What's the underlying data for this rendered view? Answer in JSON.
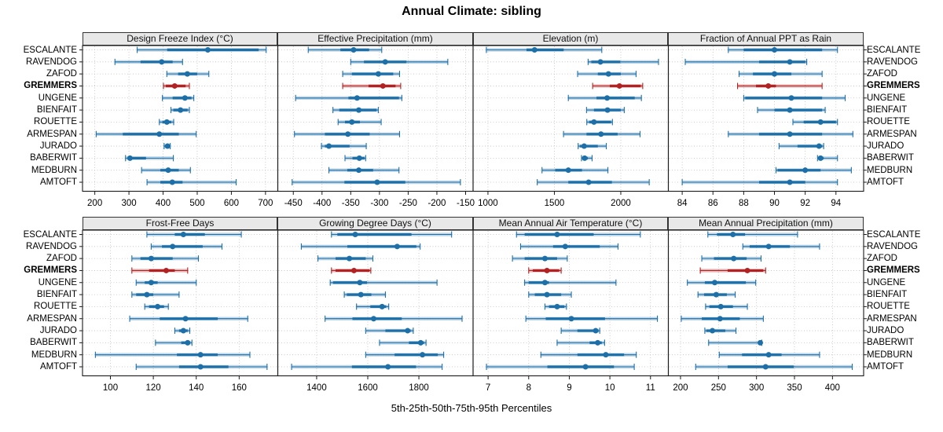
{
  "title": "Annual Climate: sibling",
  "caption": "5th-25th-50th-75th-95th Percentiles",
  "highlight_site": "GREMMERS",
  "colors": {
    "series": "#1d6fa8",
    "highlight": "#b22222",
    "strip_bg": "#e8e8e8",
    "grid": "#bfbfbf",
    "panel_border": "#1a1a1a"
  },
  "chart_data": {
    "type": "scatter",
    "variant": "percentile-dotplot-trellis",
    "percentiles": [
      5,
      25,
      50,
      75,
      95
    ],
    "sites": [
      "ESCALANTE",
      "RAVENDOG",
      "ZAFOD",
      "GREMMERS",
      "UNGENE",
      "BIENFAIT",
      "ROUETTE",
      "ARMESPAN",
      "JURADO",
      "BABERWIT",
      "MEDBURN",
      "AMTOFT"
    ],
    "panels": [
      {
        "title": "Design Freeze Index (°C)",
        "row": 0,
        "col": 0,
        "domain": [
          164,
          736
        ],
        "ticks": [
          200,
          300,
          400,
          500,
          600,
          700
        ],
        "values": [
          [
            324,
            412,
            531,
            680,
            702
          ],
          [
            259,
            334,
            396,
            428,
            457
          ],
          [
            411,
            444,
            471,
            500,
            534
          ],
          [
            401,
            408,
            434,
            466,
            477
          ],
          [
            398,
            428,
            464,
            483,
            490
          ],
          [
            423,
            430,
            451,
            472,
            477
          ],
          [
            389,
            398,
            411,
            424,
            431
          ],
          [
            204,
            282,
            389,
            446,
            497
          ],
          [
            403,
            408,
            413,
            418,
            421
          ],
          [
            290,
            296,
            303,
            350,
            430
          ],
          [
            337,
            392,
            415,
            446,
            480
          ],
          [
            353,
            392,
            427,
            457,
            614
          ]
        ]
      },
      {
        "title": "Effective Precipitation (mm)",
        "row": 0,
        "col": 1,
        "domain": [
          -477,
          -137
        ],
        "ticks": [
          -450,
          -400,
          -350,
          -300,
          -250,
          -200,
          -150
        ],
        "values": [
          [
            -424,
            -368,
            -345,
            -318,
            -296
          ],
          [
            -350,
            -327,
            -290,
            -253,
            -181
          ],
          [
            -364,
            -348,
            -302,
            -276,
            -265
          ],
          [
            -364,
            -319,
            -294,
            -272,
            -263
          ],
          [
            -446,
            -354,
            -339,
            -266,
            -261
          ],
          [
            -381,
            -370,
            -336,
            -305,
            -302
          ],
          [
            -372,
            -360,
            -348,
            -334,
            -297
          ],
          [
            -448,
            -395,
            -355,
            -317,
            -265
          ],
          [
            -401,
            -395,
            -388,
            -352,
            -323
          ],
          [
            -360,
            -347,
            -335,
            -326,
            -324
          ],
          [
            -388,
            -356,
            -336,
            -311,
            -266
          ],
          [
            -452,
            -361,
            -304,
            -255,
            -159
          ]
        ]
      },
      {
        "title": "Elevation (m)",
        "row": 0,
        "col": 2,
        "domain": [
          888,
          2358
        ],
        "ticks": [
          1000,
          1500,
          2000
        ],
        "values": [
          [
            988,
            1290,
            1351,
            1570,
            1857
          ],
          [
            1754,
            1778,
            1847,
            1996,
            2284
          ],
          [
            1675,
            1827,
            1907,
            2000,
            2115
          ],
          [
            1788,
            1917,
            1990,
            2150,
            2165
          ],
          [
            1605,
            1817,
            1897,
            2105,
            2155
          ],
          [
            1742,
            1798,
            1900,
            2000,
            2026
          ],
          [
            1744,
            1762,
            1798,
            1927,
            1937
          ],
          [
            1569,
            1742,
            1851,
            1976,
            2145
          ],
          [
            1679,
            1692,
            1724,
            1827,
            1891
          ],
          [
            1704,
            1712,
            1728,
            1752,
            1784
          ],
          [
            1407,
            1506,
            1605,
            1708,
            1903
          ],
          [
            1371,
            1605,
            1758,
            1933,
            2214
          ]
        ]
      },
      {
        "title": "Fraction of Annual PPT as Rain",
        "row": 0,
        "col": 3,
        "domain": [
          83.1,
          95.8
        ],
        "ticks": [
          84,
          86,
          88,
          90,
          92,
          94
        ],
        "values": [
          [
            87.0,
            88.0,
            90.0,
            93.1,
            94.1
          ],
          [
            84.2,
            89.0,
            91.0,
            92.0,
            92.1
          ],
          [
            87.7,
            88.6,
            90.0,
            91.1,
            93.1
          ],
          [
            87.6,
            88.8,
            89.6,
            90.1,
            93.1
          ],
          [
            88.0,
            88.1,
            91.1,
            93.1,
            94.6
          ],
          [
            88.9,
            90.0,
            91.0,
            93.1,
            93.3
          ],
          [
            91.2,
            91.9,
            93.0,
            94.0,
            94.1
          ],
          [
            87.0,
            89.0,
            91.0,
            93.1,
            95.1
          ],
          [
            90.3,
            91.5,
            92.9,
            93.1,
            93.2
          ],
          [
            92.8,
            92.9,
            93.0,
            93.2,
            94.1
          ],
          [
            90.1,
            90.2,
            92.0,
            93.0,
            95.0
          ],
          [
            84.0,
            89.0,
            91.0,
            92.0,
            94.1
          ]
        ]
      },
      {
        "title": "Frost-Free Days",
        "row": 1,
        "col": 0,
        "domain": [
          87,
          178
        ],
        "ticks": [
          100,
          120,
          140,
          160
        ],
        "values": [
          [
            117,
            130,
            134,
            144,
            161
          ],
          [
            119,
            124,
            129,
            143,
            152
          ],
          [
            110,
            114,
            119,
            129,
            141
          ],
          [
            110,
            118,
            126,
            130,
            136
          ],
          [
            112,
            116,
            119,
            122,
            140
          ],
          [
            110,
            112,
            117,
            120,
            132
          ],
          [
            116,
            118,
            122,
            125,
            127
          ],
          [
            109,
            123,
            135,
            150,
            164
          ],
          [
            130,
            132,
            134,
            136,
            137
          ],
          [
            121,
            133,
            136,
            137,
            138
          ],
          [
            93,
            131,
            142,
            150,
            165
          ],
          [
            112,
            132,
            142,
            155,
            173
          ]
        ]
      },
      {
        "title": "Growing Degree Days (°C)",
        "row": 1,
        "col": 1,
        "domain": [
          1248,
          2012
        ],
        "ticks": [
          1400,
          1600,
          1800
        ],
        "values": [
          [
            1458,
            1481,
            1551,
            1771,
            1928
          ],
          [
            1340,
            1520,
            1715,
            1790,
            1805
          ],
          [
            1405,
            1474,
            1528,
            1592,
            1620
          ],
          [
            1458,
            1474,
            1546,
            1607,
            1612
          ],
          [
            1453,
            1464,
            1569,
            1597,
            1871
          ],
          [
            1508,
            1518,
            1573,
            1614,
            1669
          ],
          [
            1556,
            1610,
            1656,
            1672,
            1682
          ],
          [
            1433,
            1540,
            1623,
            1733,
            1969
          ],
          [
            1592,
            1669,
            1756,
            1768,
            1778
          ],
          [
            1646,
            1761,
            1807,
            1820,
            1828
          ],
          [
            1592,
            1705,
            1814,
            1874,
            1897
          ],
          [
            1302,
            1538,
            1679,
            1789,
            1891
          ]
        ]
      },
      {
        "title": "Mean Annual Air Temperature (°C)",
        "row": 1,
        "col": 2,
        "domain": [
          6.63,
          11.44
        ],
        "ticks": [
          7,
          8,
          9,
          10,
          11
        ],
        "values": [
          [
            7.7,
            7.9,
            8.7,
            9.6,
            10.75
          ],
          [
            7.8,
            8.6,
            8.9,
            9.75,
            10.2
          ],
          [
            7.6,
            7.9,
            8.4,
            8.7,
            8.95
          ],
          [
            8.0,
            8.1,
            8.45,
            8.75,
            8.8
          ],
          [
            7.9,
            8.0,
            8.4,
            8.5,
            10.15
          ],
          [
            8.0,
            8.15,
            8.45,
            8.8,
            9.05
          ],
          [
            8.4,
            8.5,
            8.7,
            8.88,
            8.93
          ],
          [
            7.93,
            8.42,
            9.05,
            9.88,
            11.17
          ],
          [
            8.8,
            9.2,
            9.65,
            9.72,
            9.75
          ],
          [
            8.7,
            9.5,
            9.7,
            9.8,
            9.87
          ],
          [
            8.3,
            9.2,
            9.9,
            10.35,
            10.65
          ],
          [
            6.96,
            8.46,
            9.4,
            10.1,
            10.6
          ]
        ]
      },
      {
        "title": "Mean Annual Precipitation (mm)",
        "row": 1,
        "col": 3,
        "domain": [
          184,
          441
        ],
        "ticks": [
          200,
          250,
          300,
          350,
          400
        ],
        "values": [
          [
            236,
            248,
            269,
            285,
            354
          ],
          [
            282,
            291,
            316,
            344,
            383
          ],
          [
            228,
            244,
            270,
            287,
            306
          ],
          [
            226,
            262,
            288,
            309,
            312
          ],
          [
            209,
            232,
            245,
            286,
            299
          ],
          [
            223,
            231,
            247,
            261,
            272
          ],
          [
            233,
            238,
            253,
            269,
            288
          ],
          [
            201,
            228,
            252,
            278,
            309
          ],
          [
            232,
            234,
            242,
            259,
            273
          ],
          [
            237,
            302,
            305,
            306,
            307
          ],
          [
            251,
            281,
            316,
            333,
            383
          ],
          [
            220,
            262,
            312,
            349,
            426
          ]
        ]
      }
    ]
  }
}
